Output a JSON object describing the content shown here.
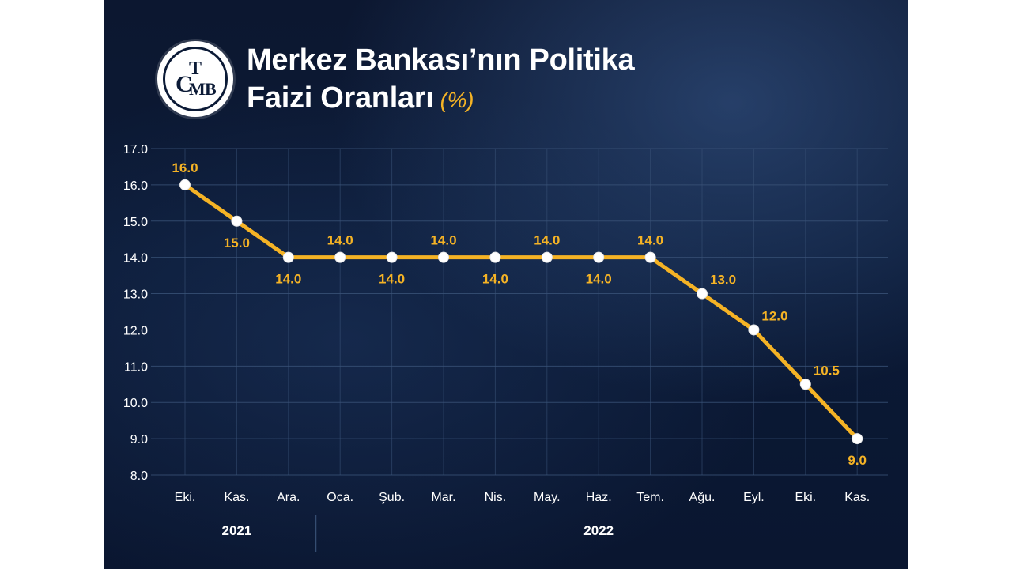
{
  "header": {
    "title_line1": "Merkez Bankası’nın Politika",
    "title_line2": "Faizi Oranları",
    "title_unit": "(%)",
    "logo": {
      "letters": [
        "T",
        "C",
        "M",
        "B"
      ],
      "colors": {
        "background": "#ffffff",
        "ink": "#0b1a36"
      }
    }
  },
  "colors": {
    "line": "#f5b325",
    "label": "#f5b325",
    "marker": "#ffffff",
    "axis_text": "#ffffff",
    "grid": "#3a5378"
  },
  "chart_data": {
    "type": "line",
    "categories": [
      "Eki.",
      "Kas.",
      "Ara.",
      "Oca.",
      "Şub.",
      "Mar.",
      "Nis.",
      "May.",
      "Haz.",
      "Tem.",
      "Ağu.",
      "Eyl.",
      "Eki.",
      "Kas."
    ],
    "values": [
      16.0,
      15.0,
      14.0,
      14.0,
      14.0,
      14.0,
      14.0,
      14.0,
      14.0,
      14.0,
      13.0,
      12.0,
      10.5,
      9.0
    ],
    "data_labels": [
      "16.0",
      "15.0",
      "14.0",
      "14.0",
      "14.0",
      "14.0",
      "14.0",
      "14.0",
      "14.0",
      "14.0",
      "13.0",
      "12.0",
      "10.5",
      "9.0"
    ],
    "label_positions": [
      "above",
      "below",
      "below",
      "above",
      "below",
      "above",
      "below",
      "above",
      "below",
      "above",
      "right",
      "right",
      "right",
      "below"
    ],
    "year_groups": [
      {
        "label": "2021",
        "start": 0,
        "end": 2
      },
      {
        "label": "2022",
        "start": 3,
        "end": 13
      }
    ],
    "ylim": [
      8.0,
      17.0
    ],
    "yticks": [
      8.0,
      9.0,
      10.0,
      11.0,
      12.0,
      13.0,
      14.0,
      15.0,
      16.0,
      17.0
    ],
    "ytick_labels": [
      "8.0",
      "9.0",
      "10.0",
      "11.0",
      "12.0",
      "13.0",
      "14.0",
      "15.0",
      "16.0",
      "17.0"
    ],
    "grid": true,
    "xlabel": "",
    "ylabel": ""
  }
}
